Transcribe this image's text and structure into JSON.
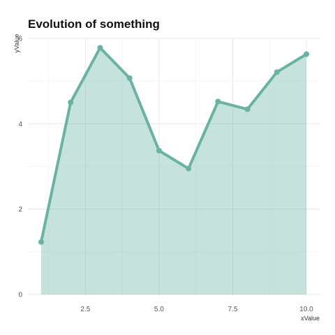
{
  "chart_data": {
    "type": "area",
    "title": "Evolution of something",
    "xlabel": "xValue",
    "ylabel": "yValue",
    "x": [
      1,
      2,
      3,
      4,
      5,
      6,
      7,
      8,
      9,
      10
    ],
    "series": [
      {
        "values": [
          1.23,
          4.5,
          5.78,
          5.07,
          3.37,
          2.95,
          4.52,
          4.34,
          5.21,
          5.63
        ]
      }
    ],
    "xlim": [
      0.55,
      10.45
    ],
    "ylim": [
      -0.05,
      6.0
    ],
    "x_ticks": [
      "2.5",
      "5.0",
      "7.5",
      "10.0"
    ],
    "y_ticks": [
      "0",
      "2",
      "4",
      "6"
    ],
    "grid": true,
    "legend": "none",
    "colors": {
      "line": "#69b3a2",
      "fill": "#69b3a2"
    }
  }
}
